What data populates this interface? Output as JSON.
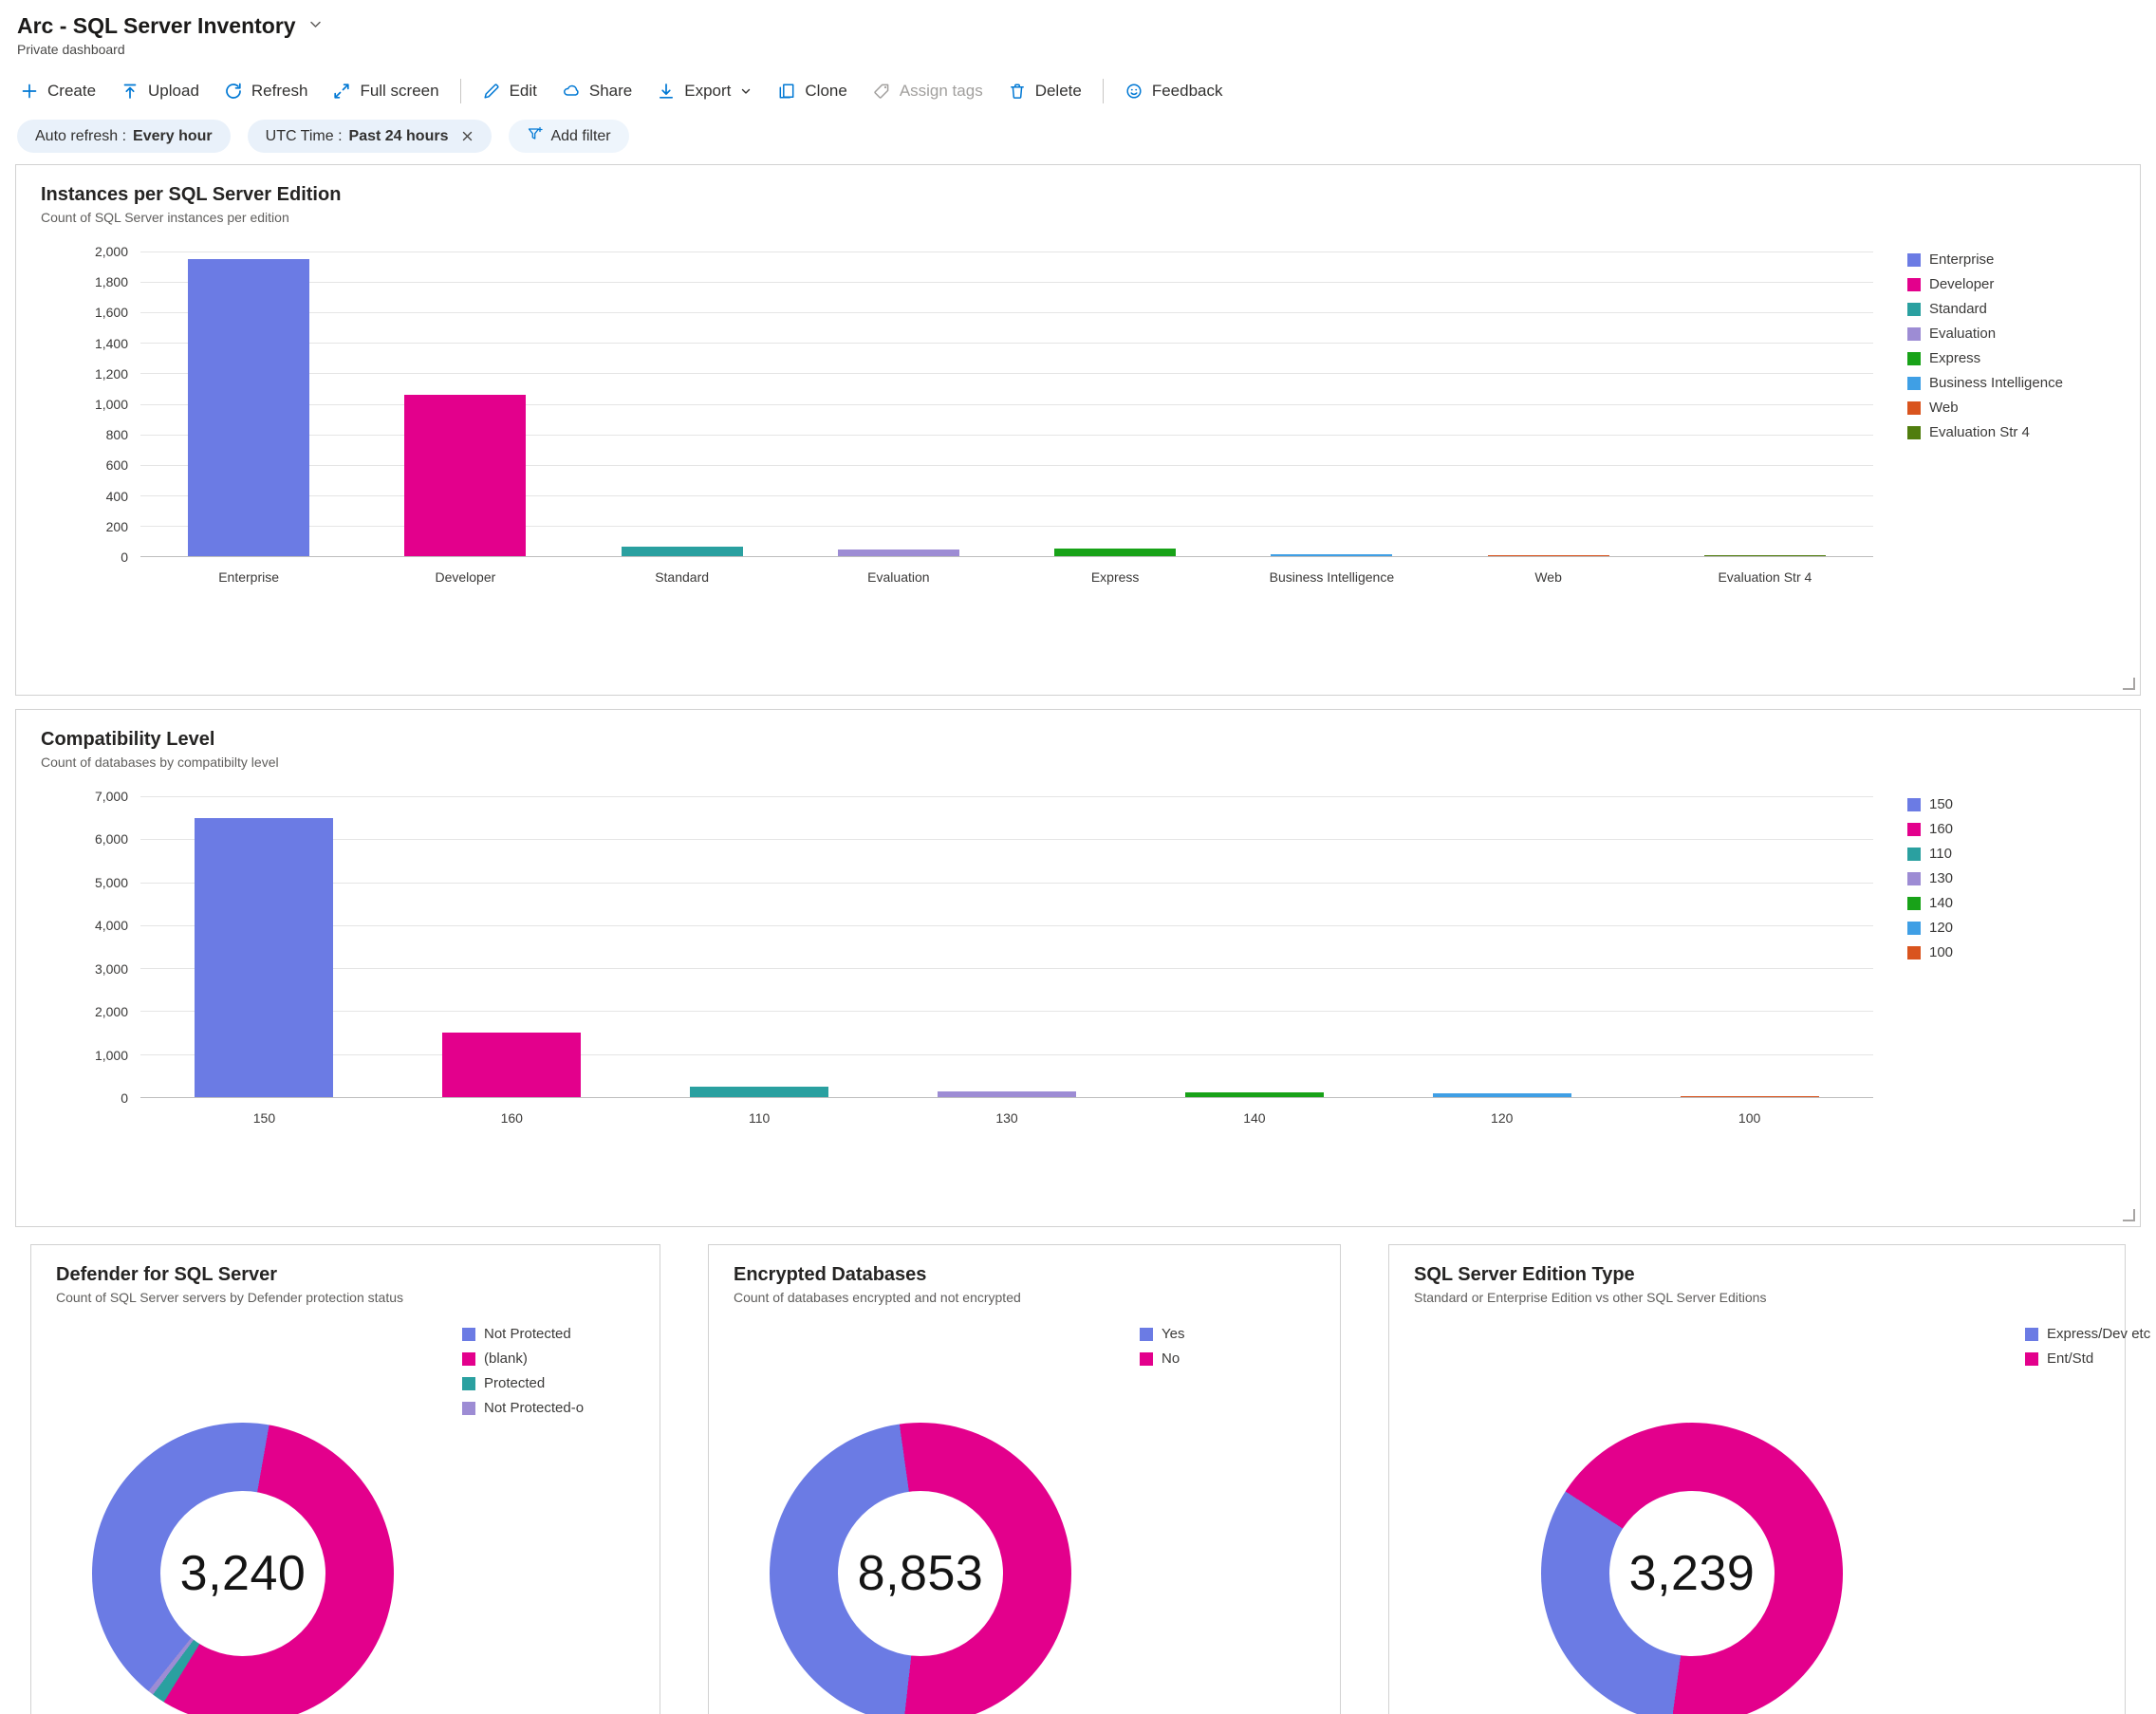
{
  "header": {
    "title": "Arc - SQL Server Inventory",
    "subtitle": "Private dashboard"
  },
  "toolbar": {
    "create": "Create",
    "upload": "Upload",
    "refresh": "Refresh",
    "fullscreen": "Full screen",
    "edit": "Edit",
    "share": "Share",
    "export": "Export",
    "clone": "Clone",
    "assign_tags": "Assign tags",
    "delete": "Delete",
    "feedback": "Feedback"
  },
  "filters": {
    "auto_refresh_label": "Auto refresh :",
    "auto_refresh_value": "Every hour",
    "utc_label": "UTC Time :",
    "utc_value": "Past 24 hours",
    "add_filter": "Add filter"
  },
  "chart_data": [
    {
      "type": "bar",
      "title": "Instances per SQL Server Edition",
      "subtitle": "Count of SQL Server instances per edition",
      "categories": [
        "Enterprise",
        "Developer",
        "Standard",
        "Evaluation",
        "Express",
        "Business Intelligence",
        "Web",
        "Evaluation Str 4"
      ],
      "values": [
        1950,
        1060,
        60,
        45,
        50,
        10,
        6,
        4
      ],
      "colors": [
        "#6b7be4",
        "#e3008c",
        "#2aa0a0",
        "#9d8cd4",
        "#18a218",
        "#3f9fe5",
        "#d9541e",
        "#507d0e"
      ],
      "xlabel": "",
      "ylabel": "",
      "ylim": [
        0,
        2000
      ],
      "ytick_step": 200,
      "grid": true,
      "legend_position": "right"
    },
    {
      "type": "bar",
      "title": "Compatibility Level",
      "subtitle": "Count of databases by compatibilty level",
      "categories": [
        "150",
        "160",
        "110",
        "130",
        "140",
        "120",
        "100"
      ],
      "values": [
        6500,
        1500,
        250,
        130,
        110,
        90,
        25
      ],
      "colors": [
        "#6b7be4",
        "#e3008c",
        "#2aa0a0",
        "#9d8cd4",
        "#18a218",
        "#3f9fe5",
        "#d9541e"
      ],
      "xlabel": "",
      "ylabel": "",
      "ylim": [
        0,
        7000
      ],
      "ytick_step": 1000,
      "grid": true,
      "legend_position": "right"
    },
    {
      "type": "pie",
      "donut": true,
      "title": "Defender for SQL Server",
      "subtitle": "Count of SQL Server servers by Defender protection status",
      "total": "3,240",
      "segments": [
        {
          "label": "Not Protected",
          "color": "#6b7be4",
          "pct": 42
        },
        {
          "label": "(blank)",
          "color": "#e3008c",
          "pct": 56
        },
        {
          "label": "Protected",
          "color": "#2aa0a0",
          "pct": 1.4
        },
        {
          "label": "Not Protected-o",
          "color": "#9d8cd4",
          "pct": 0.6
        }
      ],
      "draw_order": [
        1,
        2,
        3,
        0
      ],
      "start_deg": 10,
      "legend_position": "right"
    },
    {
      "type": "pie",
      "donut": true,
      "title": "Encrypted Databases",
      "subtitle": "Count of databases encrypted and not encrypted",
      "total": "8,853",
      "segments": [
        {
          "label": "Yes",
          "color": "#6b7be4",
          "pct": 46
        },
        {
          "label": "No",
          "color": "#e3008c",
          "pct": 54
        }
      ],
      "draw_order": [
        1,
        0
      ],
      "start_deg": -8,
      "legend_position": "right"
    },
    {
      "type": "pie",
      "donut": true,
      "title": "SQL Server Edition Type",
      "subtitle": "Standard or Enterprise Edition vs other SQL Server Editions",
      "total": "3,239",
      "segments": [
        {
          "label": "Express/Dev etc",
          "color": "#6b7be4",
          "pct": 32
        },
        {
          "label": "Ent/Std",
          "color": "#e3008c",
          "pct": 68
        }
      ],
      "draw_order": [
        1,
        0
      ],
      "start_deg": -57,
      "legend_position": "right"
    }
  ]
}
